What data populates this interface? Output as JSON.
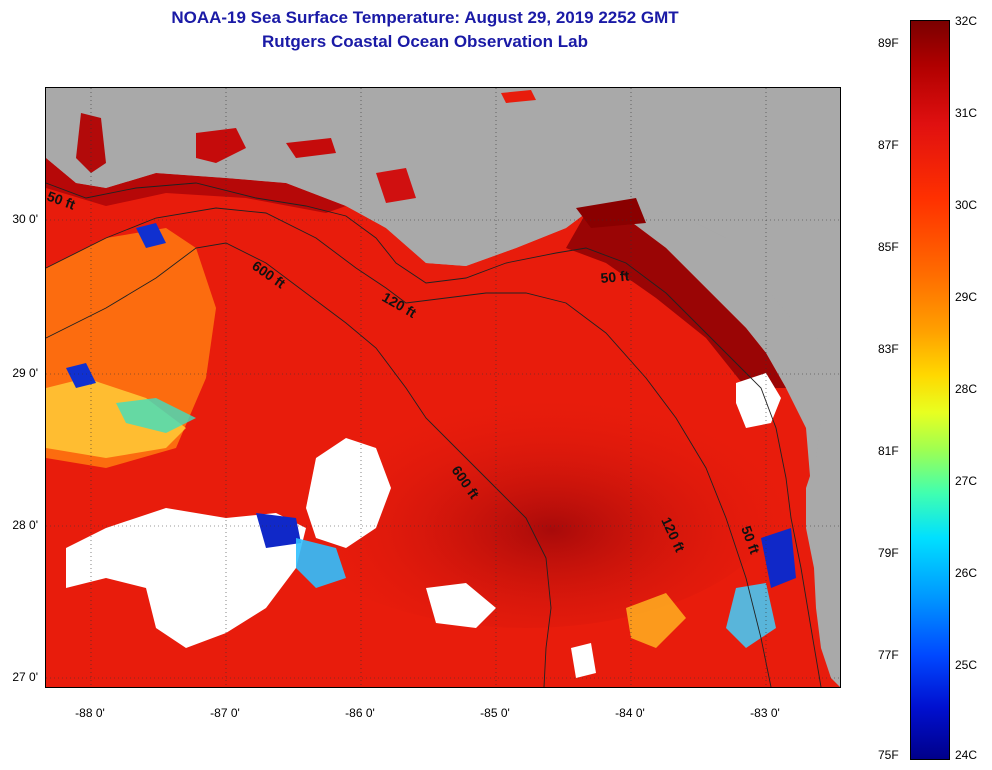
{
  "title": {
    "line1": "NOAA-19 Sea Surface Temperature:  August 29, 2019 2252 GMT",
    "line2": "Rutgers Coastal Ocean Observation Lab"
  },
  "map": {
    "latitude_labels": [
      "30 0'",
      "29 0'",
      "28 0'",
      "27 0'"
    ],
    "longitude_labels": [
      "-88 0'",
      "-87 0'",
      "-86 0'",
      "-85 0'",
      "-84 0'",
      "-83 0'"
    ],
    "contour_labels": [
      "50 ft",
      "600 ft",
      "120 ft",
      "50 ft",
      "600 ft",
      "120 ft",
      "50 ft"
    ],
    "colors": {
      "land": "#a9a9a9",
      "warm_sea": "#e81c0c",
      "hot_sea": "#8b0000",
      "cloud": "#ffffff"
    }
  },
  "colorbar": {
    "celsius_labels": [
      "32C",
      "31C",
      "30C",
      "29C",
      "28C",
      "27C",
      "26C",
      "25C",
      "24C"
    ],
    "fahrenheit_labels": [
      "89F",
      "87F",
      "85F",
      "83F",
      "81F",
      "79F",
      "77F",
      "75F"
    ]
  }
}
